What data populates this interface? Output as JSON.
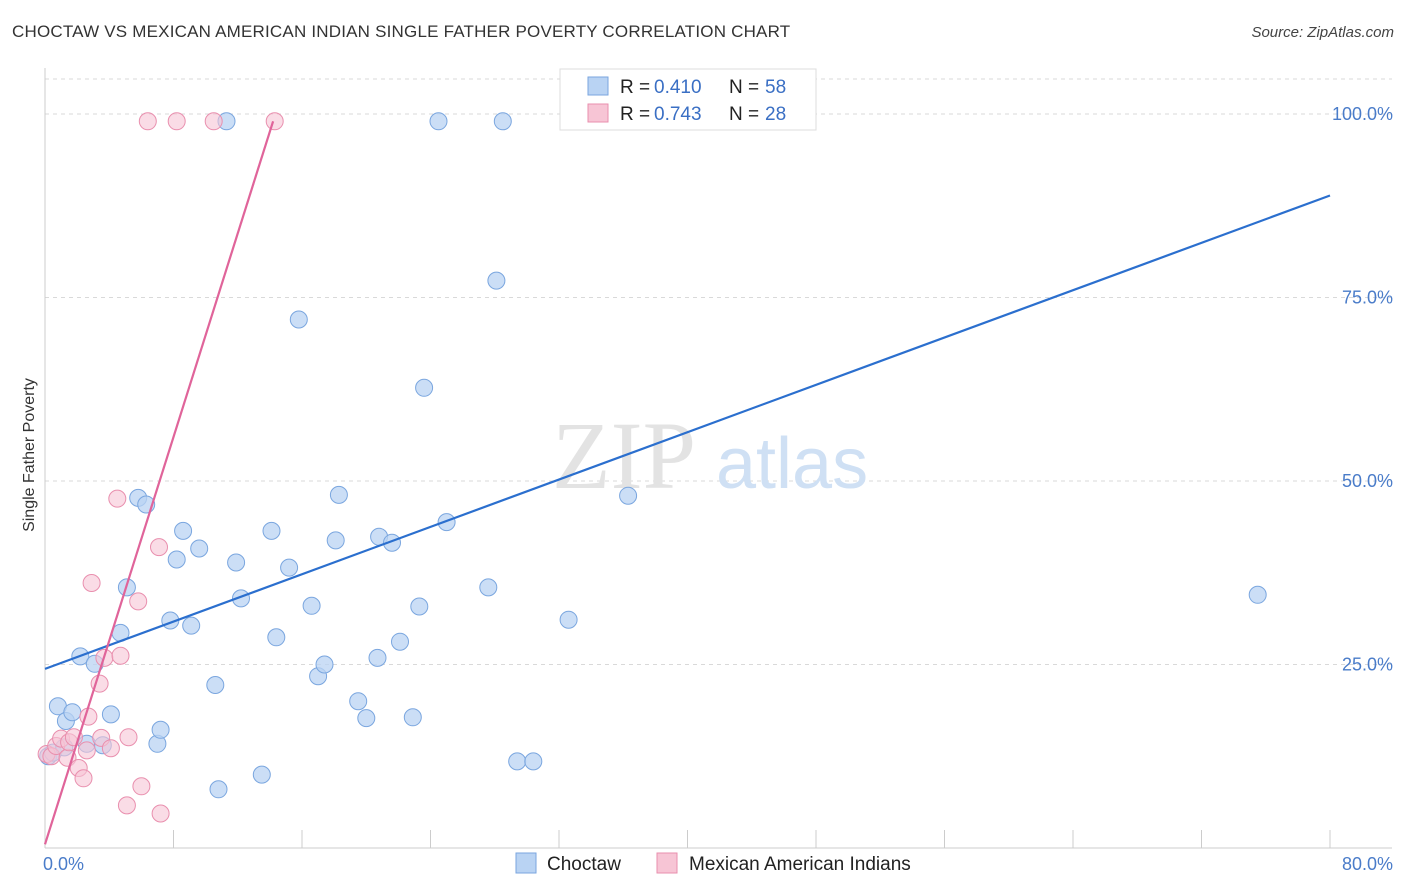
{
  "header": {
    "title": "CHOCTAW VS MEXICAN AMERICAN INDIAN SINGLE FATHER POVERTY CORRELATION CHART",
    "source": "Source: ZipAtlas.com"
  },
  "watermark": {
    "zip": "ZIP",
    "atlas": "atlas"
  },
  "colors": {
    "choctaw_fill": "#b9d3f3",
    "choctaw_stroke": "#7aa6df",
    "choctaw_line": "#2b6fce",
    "mexican_fill": "#f7c5d5",
    "mexican_stroke": "#e98fae",
    "mexican_line": "#e0649a",
    "grid": "#d9d9d9",
    "tick_label": "#4a7cc9"
  },
  "legend": {
    "rows": [
      {
        "r_label": "R =",
        "r_value": "0.410",
        "n_label": "N =",
        "n_value": "58"
      },
      {
        "r_label": "R =",
        "r_value": "0.743",
        "n_label": "N =",
        "n_value": "28"
      }
    ]
  },
  "chart_data": {
    "type": "scatter",
    "title": "CHOCTAW VS MEXICAN AMERICAN INDIAN SINGLE FATHER POVERTY CORRELATION CHART",
    "xlabel": "",
    "ylabel": "Single Father Poverty",
    "xlim": [
      0,
      80
    ],
    "ylim": [
      0,
      100
    ],
    "x_tick_labels": [
      "0.0%",
      "80.0%"
    ],
    "y_tick_labels": [
      "25.0%",
      "50.0%",
      "75.0%",
      "100.0%"
    ],
    "y_ticks": [
      25,
      50,
      75,
      100
    ],
    "grid": "horizontal dashed",
    "legend_position": "top-center",
    "series": [
      {
        "name": "Choctaw",
        "r": 0.41,
        "n": 58,
        "trend": {
          "x": [
            0,
            80
          ],
          "y": [
            24.4,
            88.9
          ]
        },
        "points": [
          [
            0.2,
            12.5
          ],
          [
            0.5,
            13.0
          ],
          [
            0.8,
            19.3
          ],
          [
            1.3,
            17.3
          ],
          [
            1.7,
            18.5
          ],
          [
            1.2,
            13.7
          ],
          [
            2.2,
            26.1
          ],
          [
            2.6,
            14.2
          ],
          [
            3.1,
            25.1
          ],
          [
            3.6,
            14.0
          ],
          [
            4.1,
            18.2
          ],
          [
            4.7,
            29.3
          ],
          [
            5.1,
            35.5
          ],
          [
            5.8,
            47.7
          ],
          [
            6.3,
            46.8
          ],
          [
            7.0,
            14.2
          ],
          [
            7.2,
            16.1
          ],
          [
            7.8,
            31.0
          ],
          [
            8.2,
            39.3
          ],
          [
            8.6,
            43.2
          ],
          [
            9.1,
            30.3
          ],
          [
            9.6,
            40.8
          ],
          [
            10.6,
            22.2
          ],
          [
            10.8,
            8.0
          ],
          [
            11.9,
            38.9
          ],
          [
            12.2,
            34.0
          ],
          [
            13.5,
            10.0
          ],
          [
            14.1,
            43.2
          ],
          [
            14.4,
            28.7
          ],
          [
            15.2,
            38.2
          ],
          [
            15.8,
            72.0
          ],
          [
            16.6,
            33.0
          ],
          [
            17.0,
            23.4
          ],
          [
            17.4,
            25.0
          ],
          [
            18.1,
            41.9
          ],
          [
            18.3,
            48.1
          ],
          [
            19.5,
            20.0
          ],
          [
            20.0,
            17.7
          ],
          [
            20.7,
            25.9
          ],
          [
            20.8,
            42.4
          ],
          [
            21.6,
            41.6
          ],
          [
            22.1,
            28.1
          ],
          [
            22.9,
            17.8
          ],
          [
            23.3,
            32.9
          ],
          [
            23.6,
            62.7
          ],
          [
            24.5,
            99.0
          ],
          [
            25.0,
            44.4
          ],
          [
            27.6,
            35.5
          ],
          [
            28.1,
            77.3
          ],
          [
            28.5,
            99.0
          ],
          [
            29.4,
            11.8
          ],
          [
            30.4,
            11.8
          ],
          [
            32.6,
            99.0
          ],
          [
            32.6,
            31.1
          ],
          [
            36.3,
            48.0
          ],
          [
            39.5,
            99.0
          ],
          [
            75.5,
            34.5
          ],
          [
            11.3,
            99.0
          ]
        ]
      },
      {
        "name": "Mexican American Indians",
        "r": 0.743,
        "n": 28,
        "trend": {
          "x": [
            0,
            14.2
          ],
          "y": [
            0.5,
            99.0
          ]
        },
        "points": [
          [
            0.1,
            12.8
          ],
          [
            0.4,
            12.5
          ],
          [
            0.7,
            13.9
          ],
          [
            1.0,
            14.9
          ],
          [
            1.4,
            12.3
          ],
          [
            1.5,
            14.4
          ],
          [
            1.8,
            15.1
          ],
          [
            2.1,
            10.9
          ],
          [
            2.4,
            9.5
          ],
          [
            2.6,
            13.3
          ],
          [
            2.7,
            17.9
          ],
          [
            2.9,
            36.1
          ],
          [
            3.4,
            22.4
          ],
          [
            3.5,
            15.0
          ],
          [
            3.7,
            25.9
          ],
          [
            4.1,
            13.6
          ],
          [
            4.5,
            47.6
          ],
          [
            4.7,
            26.2
          ],
          [
            5.1,
            5.8
          ],
          [
            5.2,
            15.1
          ],
          [
            5.8,
            33.6
          ],
          [
            6.0,
            8.4
          ],
          [
            6.4,
            99.0
          ],
          [
            7.1,
            41.0
          ],
          [
            7.2,
            4.7
          ],
          [
            8.2,
            99.0
          ],
          [
            10.5,
            99.0
          ],
          [
            14.3,
            99.0
          ]
        ]
      }
    ]
  }
}
